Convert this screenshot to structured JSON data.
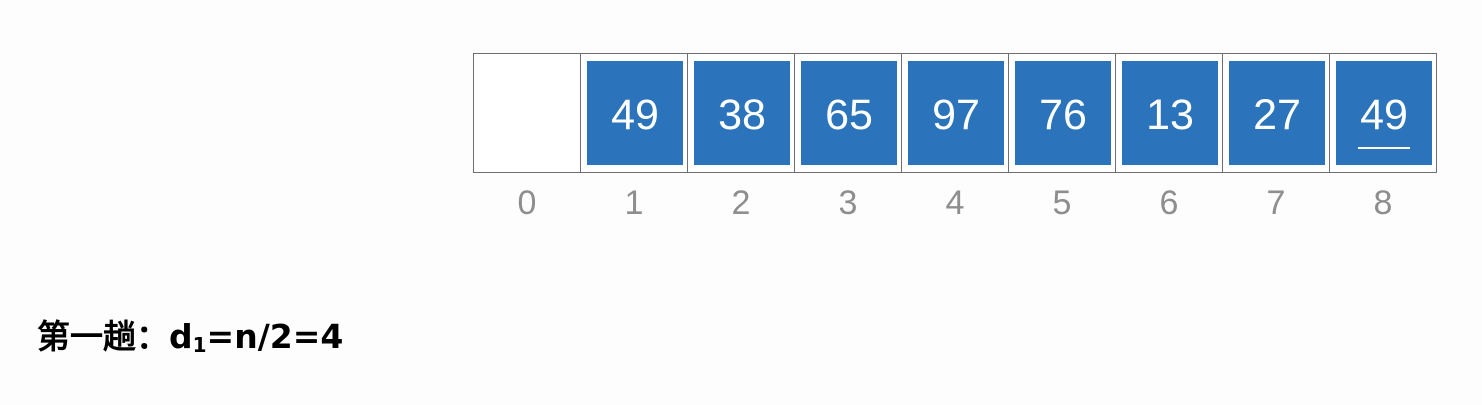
{
  "array": {
    "cells": [
      {
        "index": "0",
        "value": "",
        "filled": false,
        "underlined": false
      },
      {
        "index": "1",
        "value": "49",
        "filled": true,
        "underlined": false
      },
      {
        "index": "2",
        "value": "38",
        "filled": true,
        "underlined": false
      },
      {
        "index": "3",
        "value": "65",
        "filled": true,
        "underlined": false
      },
      {
        "index": "4",
        "value": "97",
        "filled": true,
        "underlined": false
      },
      {
        "index": "5",
        "value": "76",
        "filled": true,
        "underlined": false
      },
      {
        "index": "6",
        "value": "13",
        "filled": true,
        "underlined": false
      },
      {
        "index": "7",
        "value": "27",
        "filled": true,
        "underlined": false
      },
      {
        "index": "8",
        "value": "49",
        "filled": true,
        "underlined": true
      }
    ]
  },
  "caption": {
    "prefix": "第一趟：d",
    "subscript": "1",
    "suffix": "=n/2=4"
  },
  "colors": {
    "box_fill": "#2b73ba",
    "box_text": "#ffffff",
    "index_text": "#8e8e8e",
    "cell_border": "#6f6f6f"
  }
}
